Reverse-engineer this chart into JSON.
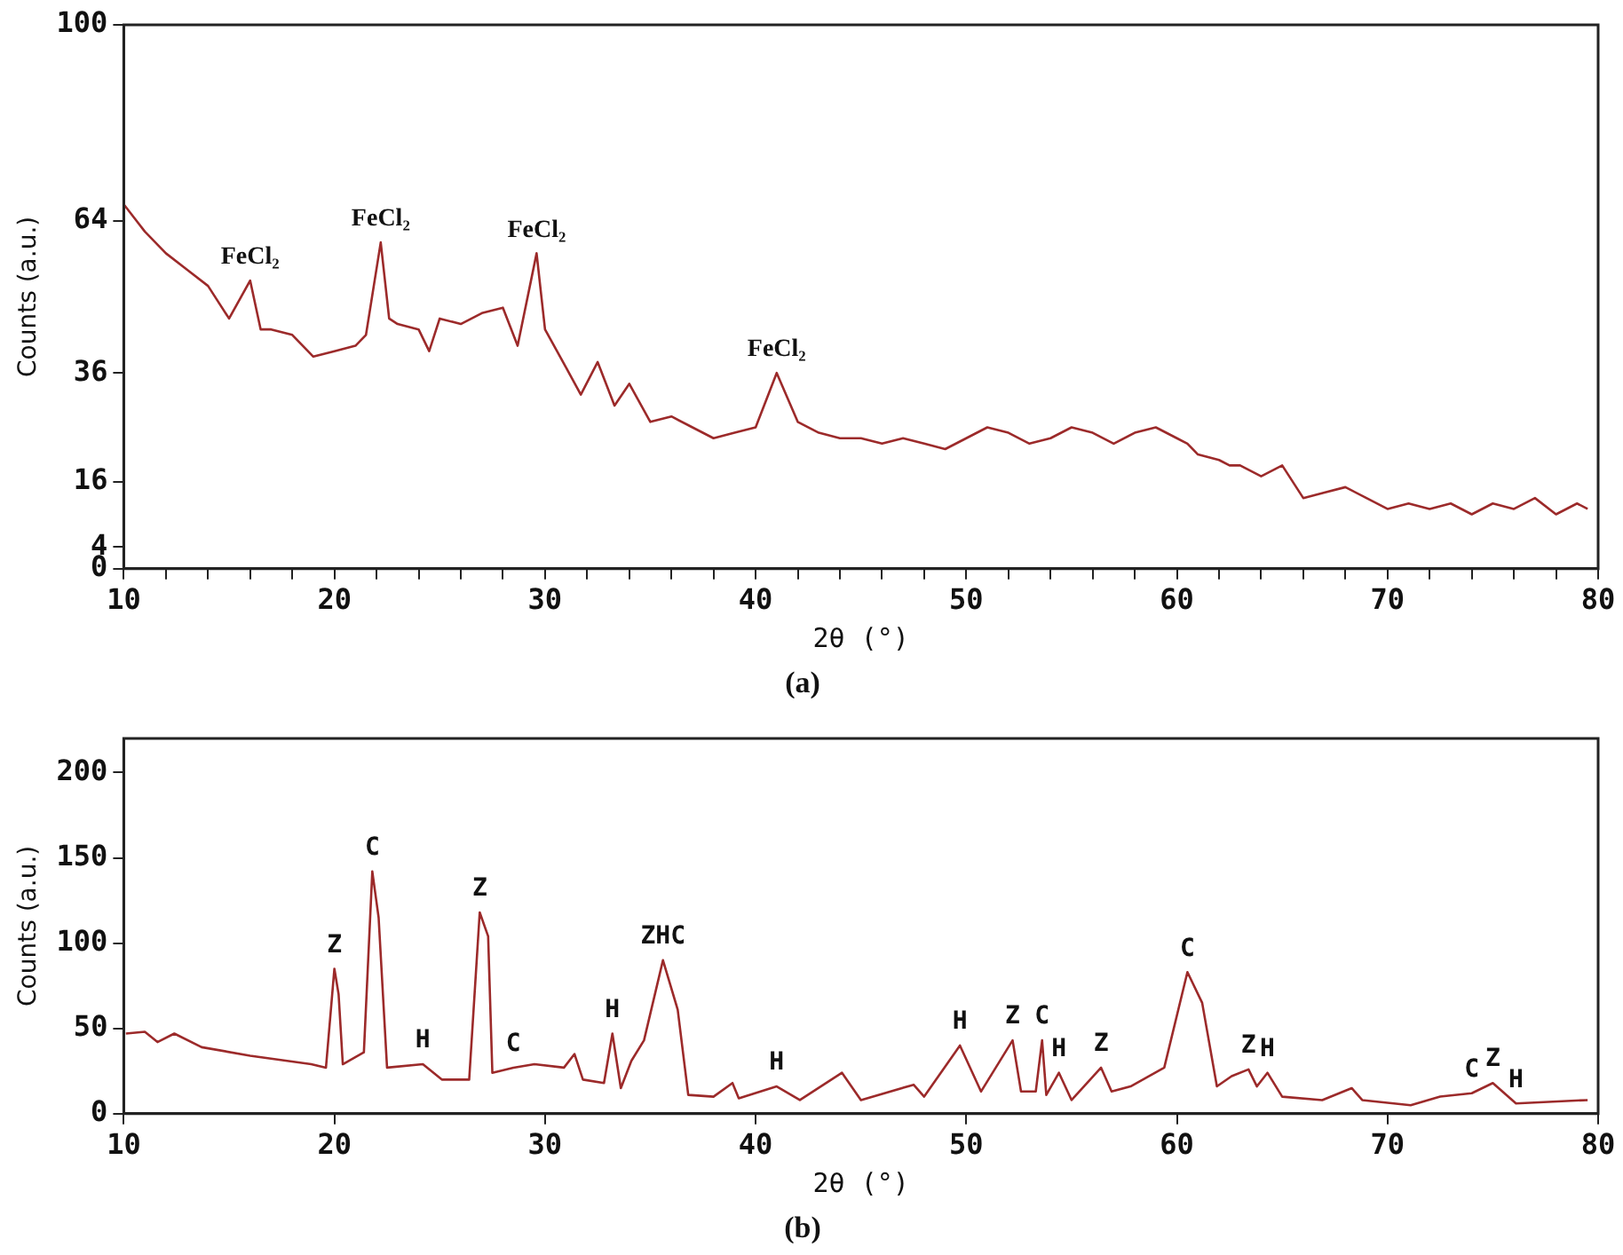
{
  "chart_data": [
    {
      "type": "line",
      "title": "(a)",
      "xlabel": "2θ (°)",
      "ylabel": "Counts (a.u.)",
      "x": [
        10,
        11,
        12,
        13,
        14,
        15,
        16,
        16.5,
        17,
        18,
        19,
        20,
        21,
        21.5,
        22.2,
        22.6,
        23,
        24,
        24.5,
        25,
        26,
        27,
        28,
        28.7,
        29.6,
        30,
        31,
        31.7,
        32.5,
        33.3,
        34,
        35,
        36,
        37,
        38,
        39,
        40,
        41,
        42,
        43,
        44,
        45,
        46,
        47,
        48,
        49,
        50,
        51,
        52,
        53,
        54,
        55,
        56,
        57,
        58,
        59,
        60,
        60.5,
        61,
        62,
        62.5,
        63,
        64,
        65,
        66,
        67,
        68,
        69,
        70,
        71,
        72,
        73,
        74,
        75,
        76,
        77,
        78,
        79,
        79.5
      ],
      "series": [
        {
          "color": "#9c2a2a",
          "values": [
            67,
            62,
            58,
            55,
            52,
            46,
            53,
            44,
            44,
            43,
            39,
            40,
            41,
            43,
            60,
            46,
            45,
            44,
            40,
            46,
            45,
            47,
            48,
            41,
            58,
            44,
            37,
            32,
            38,
            30,
            34,
            27,
            28,
            26,
            24,
            25,
            26,
            36,
            27,
            25,
            24,
            24,
            23,
            24,
            23,
            22,
            24,
            26,
            25,
            23,
            24,
            26,
            25,
            23,
            25,
            26,
            24,
            23,
            21,
            20,
            19,
            19,
            17,
            19,
            13,
            14,
            15,
            13,
            11,
            12,
            11,
            12,
            10,
            12,
            11,
            13,
            10,
            12,
            11
          ]
        }
      ],
      "xlim": [
        10,
        80
      ],
      "xticks": [
        10,
        {
          "value": 12,
          "label": null
        },
        {
          "value": 14,
          "label": null
        },
        {
          "value": 16,
          "label": null
        },
        {
          "value": 18,
          "label": null
        },
        20,
        {
          "value": 22,
          "label": null
        },
        {
          "value": 24,
          "label": null
        },
        {
          "value": 26,
          "label": null
        },
        {
          "value": 28,
          "label": null
        },
        30,
        {
          "value": 32,
          "label": null
        },
        {
          "value": 34,
          "label": null
        },
        {
          "value": 36,
          "label": null
        },
        {
          "value": 38,
          "label": null
        },
        40,
        {
          "value": 42,
          "label": null
        },
        {
          "value": 44,
          "label": null
        },
        {
          "value": 46,
          "label": null
        },
        {
          "value": 48,
          "label": null
        },
        50,
        {
          "value": 52,
          "label": null
        },
        {
          "value": 54,
          "label": null
        },
        {
          "value": 56,
          "label": null
        },
        {
          "value": 58,
          "label": null
        },
        60,
        {
          "value": 62,
          "label": null
        },
        {
          "value": 64,
          "label": null
        },
        {
          "value": 66,
          "label": null
        },
        {
          "value": 68,
          "label": null
        },
        70,
        {
          "value": 72,
          "label": null
        },
        {
          "value": 74,
          "label": null
        },
        {
          "value": 76,
          "label": null
        },
        {
          "value": 78,
          "label": null
        },
        80
      ],
      "ylim": [
        0,
        100
      ],
      "yticks": [
        0,
        4,
        16,
        36,
        64,
        100
      ],
      "annotations": [
        {
          "text": "FeCl₂",
          "x": 16,
          "y": 53
        },
        {
          "text": "FeCl₂",
          "x": 22.2,
          "y": 60
        },
        {
          "text": "FeCl₂",
          "x": 29.6,
          "y": 58
        },
        {
          "text": "FeCl₂",
          "x": 41,
          "y": 36
        }
      ]
    },
    {
      "type": "line",
      "title": "(b)",
      "xlabel": "2θ (°)",
      "ylabel": "Counts (a.u.)",
      "x": [
        10.1,
        11,
        11.6,
        12.4,
        13.7,
        16,
        18.9,
        19.6,
        20,
        20.2,
        20.4,
        21.4,
        21.8,
        22.1,
        22.5,
        24.2,
        25.1,
        26.4,
        26.9,
        27.3,
        27.5,
        28.5,
        29.5,
        30.9,
        31.4,
        31.8,
        32.8,
        33.2,
        33.6,
        34.1,
        34.7,
        35.6,
        36.3,
        36.8,
        38,
        38.9,
        39.2,
        41,
        42.1,
        44.1,
        45,
        47.5,
        48,
        49.7,
        50.7,
        52.2,
        52.6,
        53.3,
        53.6,
        53.8,
        54.4,
        55,
        56.4,
        56.9,
        57.8,
        59.4,
        60.5,
        61.2,
        61.9,
        62.6,
        63.4,
        63.8,
        64.3,
        65,
        66.9,
        68.3,
        68.8,
        71.1,
        72.5,
        74,
        75,
        76.1,
        79.5
      ],
      "series": [
        {
          "color": "#9c2a2a",
          "values": [
            47,
            48,
            42,
            47,
            39,
            34,
            29,
            27,
            85,
            70,
            29,
            36,
            142,
            115,
            27,
            29,
            20,
            20,
            118,
            104,
            24,
            27,
            29,
            27,
            35,
            20,
            18,
            47,
            15,
            31,
            43,
            90,
            61,
            11,
            10,
            18,
            9,
            16,
            8,
            24,
            8,
            17,
            10,
            40,
            13,
            43,
            13,
            13,
            43,
            11,
            24,
            8,
            27,
            13,
            16,
            27,
            83,
            65,
            16,
            22,
            26,
            16,
            24,
            10,
            8,
            15,
            8,
            5,
            10,
            12,
            18,
            6,
            8
          ]
        }
      ],
      "xlim": [
        10,
        80
      ],
      "xticks": [
        10,
        20,
        30,
        40,
        50,
        60,
        70,
        80
      ],
      "ylim": [
        0,
        220
      ],
      "yticks": [
        0,
        50,
        100,
        150,
        200
      ],
      "annotations": [
        {
          "text": "Z",
          "x": 20,
          "y": 85
        },
        {
          "text": "C",
          "x": 21.8,
          "y": 142
        },
        {
          "text": "H",
          "x": 24.2,
          "y": 29
        },
        {
          "text": "Z",
          "x": 26.9,
          "y": 118
        },
        {
          "text": "C",
          "x": 28.5,
          "y": 27
        },
        {
          "text": "H",
          "x": 33.2,
          "y": 47
        },
        {
          "text": "ZHC",
          "x": 35.6,
          "y": 90
        },
        {
          "text": "H",
          "x": 41,
          "y": 16
        },
        {
          "text": "H",
          "x": 49.7,
          "y": 40
        },
        {
          "text": "Z",
          "x": 52.2,
          "y": 43
        },
        {
          "text": "C",
          "x": 53.6,
          "y": 43
        },
        {
          "text": "H",
          "x": 54.4,
          "y": 24
        },
        {
          "text": "Z",
          "x": 56.4,
          "y": 27
        },
        {
          "text": "C",
          "x": 60.5,
          "y": 83
        },
        {
          "text": "Z",
          "x": 63.4,
          "y": 26
        },
        {
          "text": "H",
          "x": 64.3,
          "y": 24
        },
        {
          "text": "C",
          "x": 74,
          "y": 12
        },
        {
          "text": "Z",
          "x": 75,
          "y": 18
        },
        {
          "text": "H",
          "x": 76.1,
          "y": 6
        }
      ]
    }
  ]
}
